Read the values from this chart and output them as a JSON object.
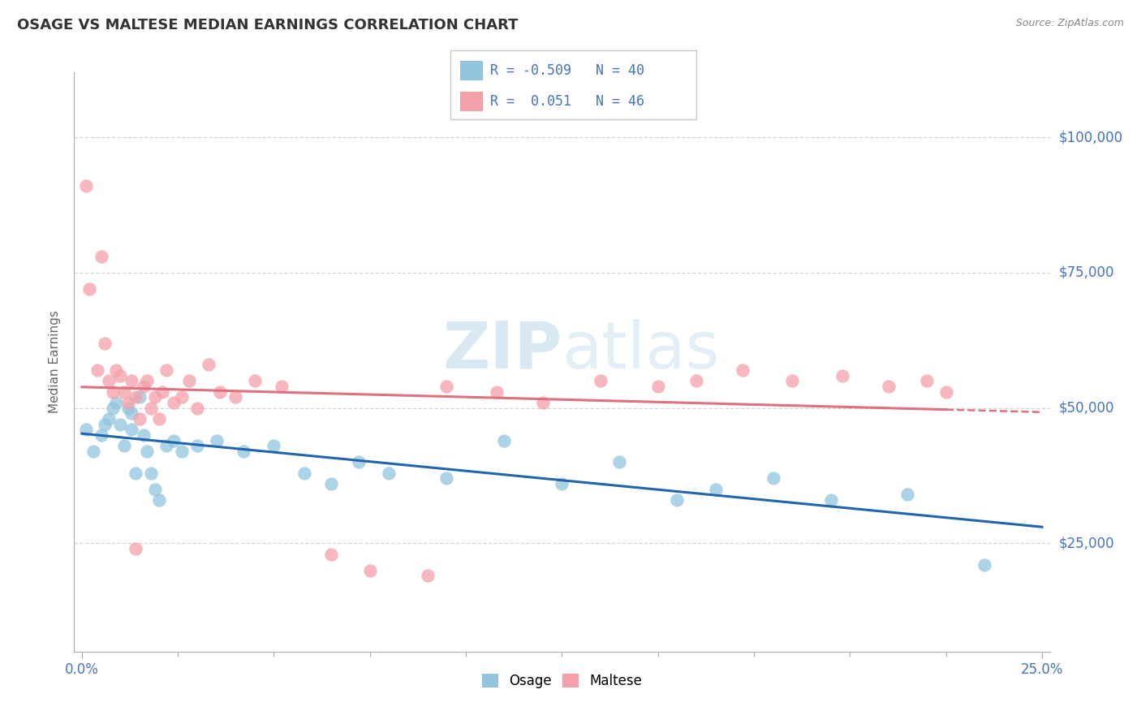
{
  "title": "OSAGE VS MALTESE MEDIAN EARNINGS CORRELATION CHART",
  "source_text": "Source: ZipAtlas.com",
  "ylabel": "Median Earnings",
  "xlim": [
    -0.002,
    0.252
  ],
  "ylim": [
    5000,
    112000
  ],
  "ytick_positions": [
    25000,
    50000,
    75000,
    100000
  ],
  "ytick_labels": [
    "$25,000",
    "$50,000",
    "$75,000",
    "$100,000"
  ],
  "watermark": "ZIPatlas",
  "legend_R_osage": "-0.509",
  "legend_N_osage": "40",
  "legend_R_maltese": "0.051",
  "legend_N_maltese": "46",
  "osage_color": "#92C5DE",
  "maltese_color": "#F4A0A8",
  "osage_line_color": "#2166AC",
  "maltese_line_color": "#E07080",
  "background_color": "#ffffff",
  "grid_color": "#cccccc",
  "label_color": "#4472c4",
  "title_color": "#333333",
  "source_color": "#888888",
  "ylabel_color": "#666666",
  "osage_x": [
    0.001,
    0.003,
    0.005,
    0.006,
    0.007,
    0.008,
    0.009,
    0.01,
    0.011,
    0.012,
    0.013,
    0.013,
    0.014,
    0.015,
    0.016,
    0.017,
    0.018,
    0.019,
    0.02,
    0.022,
    0.024,
    0.026,
    0.03,
    0.035,
    0.042,
    0.05,
    0.058,
    0.065,
    0.072,
    0.08,
    0.095,
    0.11,
    0.125,
    0.14,
    0.155,
    0.165,
    0.18,
    0.195,
    0.215,
    0.235
  ],
  "osage_y": [
    46000,
    42000,
    45000,
    47000,
    48000,
    50000,
    51000,
    47000,
    43000,
    50000,
    46000,
    49000,
    38000,
    52000,
    45000,
    42000,
    38000,
    35000,
    33000,
    43000,
    44000,
    42000,
    43000,
    44000,
    42000,
    43000,
    38000,
    36000,
    40000,
    38000,
    37000,
    44000,
    36000,
    40000,
    33000,
    35000,
    37000,
    33000,
    34000,
    21000
  ],
  "maltese_x": [
    0.001,
    0.002,
    0.004,
    0.005,
    0.006,
    0.007,
    0.008,
    0.009,
    0.01,
    0.011,
    0.012,
    0.013,
    0.014,
    0.015,
    0.016,
    0.017,
    0.018,
    0.019,
    0.02,
    0.021,
    0.022,
    0.024,
    0.026,
    0.028,
    0.03,
    0.033,
    0.036,
    0.04,
    0.045,
    0.052,
    0.095,
    0.108,
    0.12,
    0.135,
    0.15,
    0.16,
    0.172,
    0.185,
    0.198,
    0.21,
    0.22,
    0.225,
    0.014,
    0.065,
    0.075,
    0.09
  ],
  "maltese_y": [
    91000,
    72000,
    57000,
    78000,
    62000,
    55000,
    53000,
    57000,
    56000,
    53000,
    51000,
    55000,
    52000,
    48000,
    54000,
    55000,
    50000,
    52000,
    48000,
    53000,
    57000,
    51000,
    52000,
    55000,
    50000,
    58000,
    53000,
    52000,
    55000,
    54000,
    54000,
    53000,
    51000,
    55000,
    54000,
    55000,
    57000,
    55000,
    56000,
    54000,
    55000,
    53000,
    24000,
    23000,
    20000,
    19000
  ]
}
